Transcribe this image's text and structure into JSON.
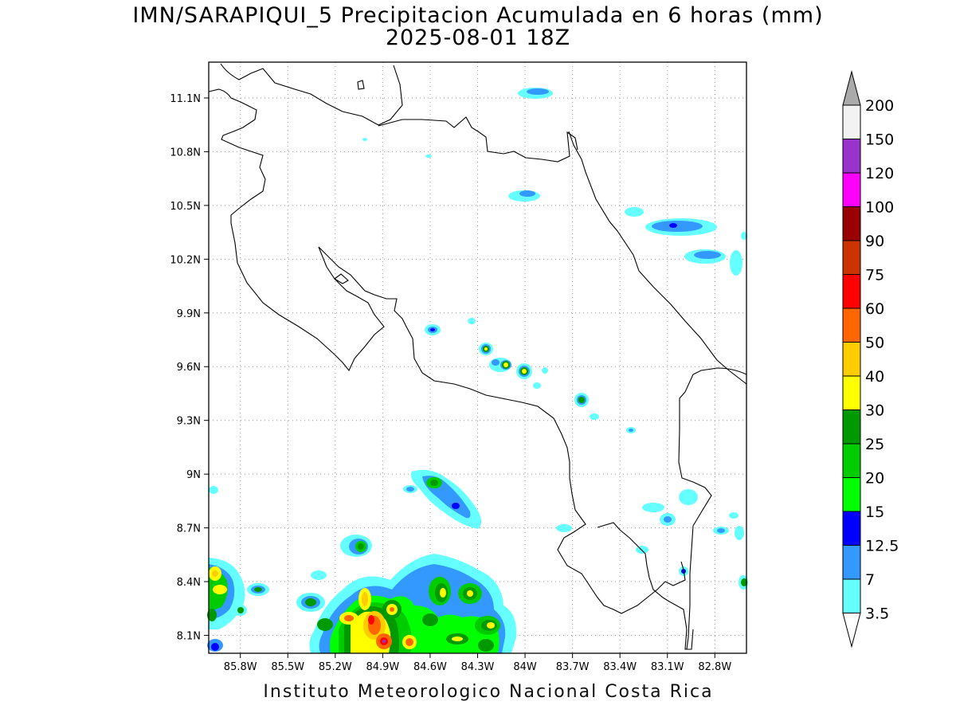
{
  "title": {
    "line1": "IMN/SARAPIQUI_5 Precipitacion Acumulada en 6 horas (mm)",
    "line2": "2025-08-01 18Z"
  },
  "footer": "Instituto Meteorologico Nacional Costa Rica",
  "map": {
    "lon_range": [
      -86.0,
      -82.6
    ],
    "lat_range": [
      8.0,
      11.3
    ],
    "x_ticks": [
      "85.8W",
      "85.5W",
      "85.2W",
      "84.9W",
      "84.6W",
      "84.3W",
      "84W",
      "83.7W",
      "83.4W",
      "83.1W",
      "82.8W"
    ],
    "y_ticks": [
      "11.1N",
      "10.8N",
      "10.5N",
      "10.2N",
      "9.9N",
      "9.6N",
      "9.3N",
      "9N",
      "8.7N",
      "8.4N",
      "8.1N"
    ],
    "grid": "dotted"
  },
  "colorbar": {
    "labels": [
      "200",
      "150",
      "120",
      "100",
      "90",
      "75",
      "60",
      "50",
      "40",
      "30",
      "25",
      "20",
      "15",
      "12.5",
      "7",
      "3.5"
    ],
    "colors": [
      "#f2f2f2",
      "#9933cc",
      "#ff00ff",
      "#990000",
      "#cc3300",
      "#ff0000",
      "#ff6600",
      "#ffcc00",
      "#ffff00",
      "#009900",
      "#00cc00",
      "#00ff00",
      "#0000ff",
      "#3399ff",
      "#66ffff"
    ],
    "over_color": "#aaaaaa",
    "under_color": "#ffffff"
  }
}
